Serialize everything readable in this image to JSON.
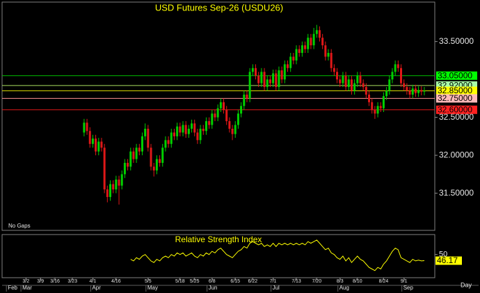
{
  "chart_data": {
    "type": "candlestick",
    "title": "USD Futures Sep-26 (USDU26)",
    "note": "No Gaps",
    "x_unit_label": "Day",
    "xlim": [
      -28.2,
      120.6
    ],
    "xticks": [
      {
        "value": -20,
        "label": "3/2"
      },
      {
        "value": -15,
        "label": "3/9"
      },
      {
        "value": -10,
        "label": "3/16"
      },
      {
        "value": -4,
        "label": "3/23"
      },
      {
        "value": 3,
        "label": "4/1"
      },
      {
        "value": 11,
        "label": "4/16"
      },
      {
        "value": 22,
        "label": "5/5"
      },
      {
        "value": 33,
        "label": "5/18"
      },
      {
        "value": 38,
        "label": "5/25"
      },
      {
        "value": 44,
        "label": "6/8"
      },
      {
        "value": 52,
        "label": "6/15"
      },
      {
        "value": 58,
        "label": "6/22"
      },
      {
        "value": 65,
        "label": "7/1"
      },
      {
        "value": 73,
        "label": "7/13"
      },
      {
        "value": 80,
        "label": "7/20"
      },
      {
        "value": 88,
        "label": "8/3"
      },
      {
        "value": 94,
        "label": "8/10"
      },
      {
        "value": 103,
        "label": "8/24"
      },
      {
        "value": 110,
        "label": "9/1"
      }
    ],
    "months": [
      {
        "value": -26,
        "label": "Feb"
      },
      {
        "value": -21,
        "label": "Mar"
      },
      {
        "value": 3,
        "label": "Apr"
      },
      {
        "value": 22,
        "label": "May"
      },
      {
        "value": 43,
        "label": "Jun"
      },
      {
        "value": 65,
        "label": "Jul"
      },
      {
        "value": 88,
        "label": "Aug"
      },
      {
        "value": 110,
        "label": "Sep"
      }
    ],
    "ylim": [
      31.01,
      34.02
    ],
    "yticks": [
      {
        "value": 33.5,
        "label": "33.50000"
      },
      {
        "value": 32.5,
        "label": "32.50000"
      },
      {
        "value": 32.0,
        "label": "32.00000"
      },
      {
        "value": 31.5,
        "label": "31.50000"
      }
    ],
    "up_color": "#00d000",
    "down_color": "#e01818",
    "candles": {
      "open": [
        32.3,
        32.43,
        32.32,
        32.15,
        32.22,
        32.05,
        32.18,
        32.1,
        31.55,
        31.45,
        31.62,
        31.55,
        31.68,
        31.6,
        31.75,
        31.9,
        31.85,
        32.05,
        31.95,
        32.1,
        32.05,
        32.25,
        32.35,
        32.1,
        31.85,
        31.8,
        31.95,
        31.9,
        32.1,
        32.2,
        32.15,
        32.3,
        32.25,
        32.38,
        32.3,
        32.4,
        32.28,
        32.35,
        32.42,
        32.3,
        32.2,
        32.35,
        32.32,
        32.45,
        32.4,
        32.55,
        32.5,
        32.62,
        32.7,
        32.6,
        32.45,
        32.35,
        32.28,
        32.4,
        32.55,
        32.65,
        32.8,
        32.75,
        33.1,
        33.15,
        33.05,
        32.95,
        33.1,
        32.9,
        33.0,
        32.95,
        33.08,
        32.9,
        33.12,
        33.0,
        33.2,
        33.15,
        33.3,
        33.25,
        33.4,
        33.35,
        33.45,
        33.4,
        33.55,
        33.45,
        33.6,
        33.65,
        33.55,
        33.45,
        33.3,
        33.35,
        33.15,
        33.1,
        33.0,
        32.95,
        33.05,
        32.9,
        33.0,
        32.85,
        32.95,
        33.05,
        32.95,
        32.9,
        32.8,
        32.7,
        32.6,
        32.55,
        32.65,
        32.62,
        32.78,
        32.85,
        33.0,
        33.1,
        33.2,
        33.15,
        32.95,
        32.9,
        32.85,
        32.8,
        32.88,
        32.82,
        32.86,
        32.84
      ],
      "high": [
        32.48,
        32.48,
        32.37,
        32.27,
        32.27,
        32.23,
        32.23,
        32.15,
        31.6,
        31.67,
        31.67,
        31.73,
        31.73,
        31.8,
        31.95,
        31.95,
        32.1,
        32.1,
        32.15,
        32.15,
        32.3,
        32.42,
        32.4,
        32.15,
        31.9,
        32.0,
        32.0,
        32.15,
        32.25,
        32.25,
        32.35,
        32.35,
        32.43,
        32.43,
        32.45,
        32.45,
        32.4,
        32.47,
        32.47,
        32.35,
        32.4,
        32.4,
        32.5,
        32.5,
        32.6,
        32.6,
        32.67,
        32.75,
        32.75,
        32.65,
        32.5,
        32.4,
        32.45,
        32.6,
        32.7,
        32.85,
        32.85,
        33.15,
        33.2,
        33.2,
        33.1,
        33.15,
        33.15,
        33.05,
        33.05,
        33.13,
        33.13,
        33.17,
        33.17,
        33.25,
        33.25,
        33.35,
        33.35,
        33.45,
        33.45,
        33.5,
        33.5,
        33.6,
        33.6,
        33.68,
        33.72,
        33.7,
        33.6,
        33.5,
        33.4,
        33.4,
        33.2,
        33.15,
        33.05,
        33.1,
        33.1,
        33.05,
        33.05,
        33.0,
        33.1,
        33.1,
        33.0,
        32.95,
        32.85,
        32.75,
        32.65,
        32.7,
        32.7,
        32.83,
        32.9,
        33.05,
        33.15,
        33.25,
        33.25,
        33.2,
        33.0,
        32.95,
        32.9,
        32.93,
        32.93,
        32.91,
        32.91,
        32.9
      ],
      "low": [
        32.25,
        32.27,
        32.1,
        32.1,
        32.0,
        32.0,
        32.05,
        31.5,
        31.38,
        31.4,
        31.5,
        31.5,
        31.35,
        31.55,
        31.7,
        31.8,
        31.8,
        31.9,
        31.9,
        32.0,
        32.0,
        32.2,
        32.05,
        31.8,
        31.72,
        31.75,
        31.85,
        31.85,
        32.05,
        32.1,
        32.1,
        32.2,
        32.2,
        32.25,
        32.25,
        32.23,
        32.23,
        32.3,
        32.25,
        32.15,
        32.15,
        32.27,
        32.27,
        32.35,
        32.35,
        32.45,
        32.45,
        32.57,
        32.55,
        32.4,
        32.3,
        32.2,
        32.23,
        32.35,
        32.5,
        32.6,
        32.7,
        32.7,
        33.05,
        33.0,
        32.9,
        32.9,
        32.85,
        32.85,
        32.9,
        32.9,
        32.85,
        32.85,
        32.95,
        32.95,
        33.1,
        33.1,
        33.2,
        33.2,
        33.3,
        33.3,
        33.35,
        33.35,
        33.4,
        33.4,
        33.55,
        33.5,
        33.4,
        33.25,
        33.25,
        33.1,
        33.05,
        32.95,
        32.9,
        32.9,
        32.85,
        32.85,
        32.8,
        32.8,
        32.9,
        32.9,
        32.85,
        32.75,
        32.65,
        32.55,
        32.48,
        32.5,
        32.57,
        32.57,
        32.73,
        32.8,
        32.95,
        33.05,
        33.1,
        32.9,
        32.85,
        32.8,
        32.75,
        32.75,
        32.77,
        32.77,
        32.79,
        32.79
      ],
      "close": [
        32.43,
        32.32,
        32.15,
        32.22,
        32.05,
        32.18,
        32.1,
        31.55,
        31.45,
        31.62,
        31.55,
        31.68,
        31.6,
        31.75,
        31.9,
        31.85,
        32.05,
        31.95,
        32.1,
        32.05,
        32.25,
        32.35,
        32.1,
        31.85,
        31.8,
        31.95,
        31.9,
        32.1,
        32.2,
        32.15,
        32.3,
        32.25,
        32.38,
        32.3,
        32.4,
        32.28,
        32.35,
        32.42,
        32.3,
        32.2,
        32.35,
        32.32,
        32.45,
        32.4,
        32.55,
        32.5,
        32.62,
        32.7,
        32.6,
        32.45,
        32.35,
        32.28,
        32.4,
        32.55,
        32.65,
        32.8,
        32.75,
        33.1,
        33.15,
        33.05,
        32.95,
        33.1,
        32.9,
        33.0,
        32.95,
        33.08,
        32.9,
        33.12,
        33.0,
        33.2,
        33.15,
        33.3,
        33.25,
        33.4,
        33.35,
        33.45,
        33.4,
        33.55,
        33.45,
        33.6,
        33.65,
        33.55,
        33.45,
        33.3,
        33.35,
        33.15,
        33.1,
        33.0,
        32.95,
        33.05,
        32.9,
        33.0,
        32.85,
        32.95,
        33.05,
        32.95,
        32.9,
        32.8,
        32.7,
        32.6,
        32.55,
        32.65,
        32.62,
        32.78,
        32.85,
        33.0,
        33.1,
        33.2,
        33.15,
        32.95,
        32.9,
        32.85,
        32.8,
        32.88,
        32.82,
        32.86,
        32.84,
        32.85
      ]
    },
    "levels": [
      {
        "value": 33.05,
        "label": "33.05000",
        "color": "#00c000",
        "label_color": "#00ff00"
      },
      {
        "value": 32.92,
        "label": "32.92000",
        "color": "#a8e060",
        "label_color": "#a8ffa8"
      },
      {
        "value": 32.85,
        "label": "32.85000",
        "color": "#d8d800",
        "label_color": "#ffff00"
      },
      {
        "value": 32.75,
        "label": "32.75000",
        "color": "#ff9090",
        "label_color": "#ffb8b8"
      },
      {
        "value": 32.6,
        "label": "32.60000",
        "color": "#e01818",
        "label_color": "#ff2020"
      }
    ],
    "rsi": {
      "title": "Relative Strength Index",
      "color": "#ffff00",
      "ylim": [
        36,
        62
      ],
      "yticks": [
        50
      ],
      "values": [
        null,
        null,
        null,
        null,
        null,
        null,
        null,
        null,
        null,
        null,
        null,
        null,
        null,
        null,
        null,
        null,
        47,
        46,
        48,
        47,
        49,
        50,
        48,
        46,
        45,
        47,
        46,
        48,
        49,
        48,
        50,
        49,
        51,
        50,
        51,
        49,
        50,
        51,
        49,
        48,
        50,
        49,
        51,
        50,
        52,
        51,
        53,
        54,
        52,
        50,
        49,
        48,
        50,
        52,
        53,
        55,
        54,
        57,
        58,
        57,
        56,
        57,
        55,
        56,
        55,
        57,
        55,
        57,
        56,
        57,
        56,
        57,
        56,
        57,
        56,
        57,
        56,
        58,
        57,
        58,
        59,
        57,
        55,
        53,
        54,
        51,
        50,
        48,
        47,
        49,
        46,
        48,
        45,
        47,
        49,
        47,
        46,
        44,
        42,
        41,
        40,
        42,
        41,
        44,
        46,
        49,
        52,
        54,
        53,
        48,
        47,
        46,
        45,
        47,
        46,
        46.5,
        46,
        46.17
      ]
    }
  }
}
